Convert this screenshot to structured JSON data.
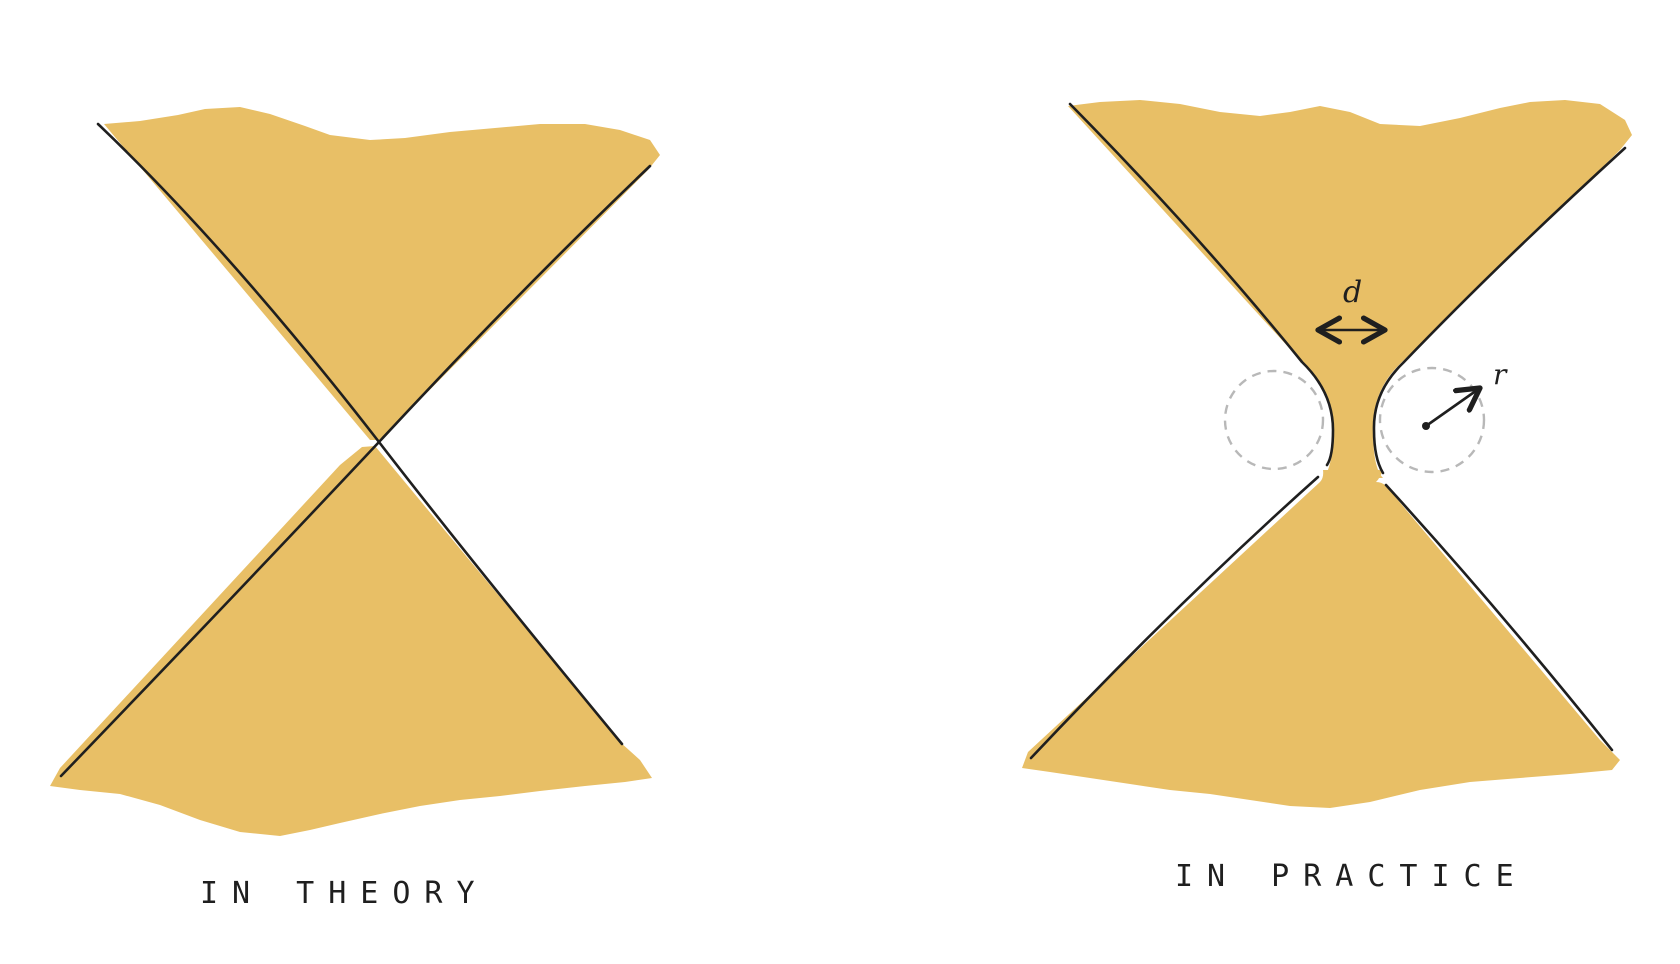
{
  "colors": {
    "cone_fill": "#E8BF66",
    "ink": "#1F1F1F",
    "helper_circle": "#B8B8B8",
    "background": "#FFFFFF"
  },
  "panels": [
    {
      "id": "theory",
      "caption": "IN THEORY"
    },
    {
      "id": "practice",
      "caption": "IN PRACTICE",
      "gap_label": "d",
      "radius_label": "r"
    }
  ]
}
